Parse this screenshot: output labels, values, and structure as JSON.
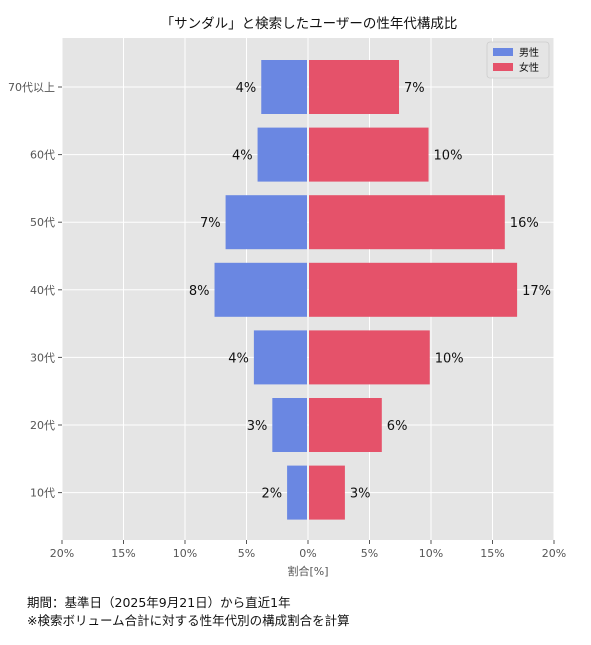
{
  "chart_data": {
    "type": "bar",
    "orientation": "horizontal-population-pyramid",
    "title": "「サンダル」と検索したユーザーの性年代構成比",
    "xlabel": "割合[%]",
    "ylabel": "",
    "categories": [
      "70代以上",
      "60代",
      "50代",
      "40代",
      "30代",
      "20代",
      "10代"
    ],
    "series": [
      {
        "name": "男性",
        "color": "#6a87e2",
        "values": [
          3.8,
          4.1,
          6.7,
          7.6,
          4.4,
          2.9,
          1.7
        ],
        "labels": [
          "4%",
          "4%",
          "7%",
          "8%",
          "4%",
          "3%",
          "2%"
        ]
      },
      {
        "name": "女性",
        "color": "#e5526a",
        "values": [
          7.4,
          9.8,
          16.0,
          17.0,
          9.9,
          6.0,
          3.0
        ],
        "labels": [
          "7%",
          "10%",
          "16%",
          "17%",
          "10%",
          "6%",
          "3%"
        ]
      }
    ],
    "xlim": [
      -20,
      20
    ],
    "xticks": [
      -20,
      -15,
      -10,
      -5,
      0,
      5,
      10,
      15,
      20
    ],
    "xtick_labels": [
      "20%",
      "15%",
      "10%",
      "5%",
      "0%",
      "5%",
      "10%",
      "15%",
      "20%"
    ],
    "grid": true,
    "legend": "top-right",
    "background": "#e5e5e5"
  },
  "footnotes": {
    "period": "期間：基準日（2025年9月21日）から直近1年",
    "note": "※検索ボリューム合計に対する性年代別の構成割合を計算"
  }
}
